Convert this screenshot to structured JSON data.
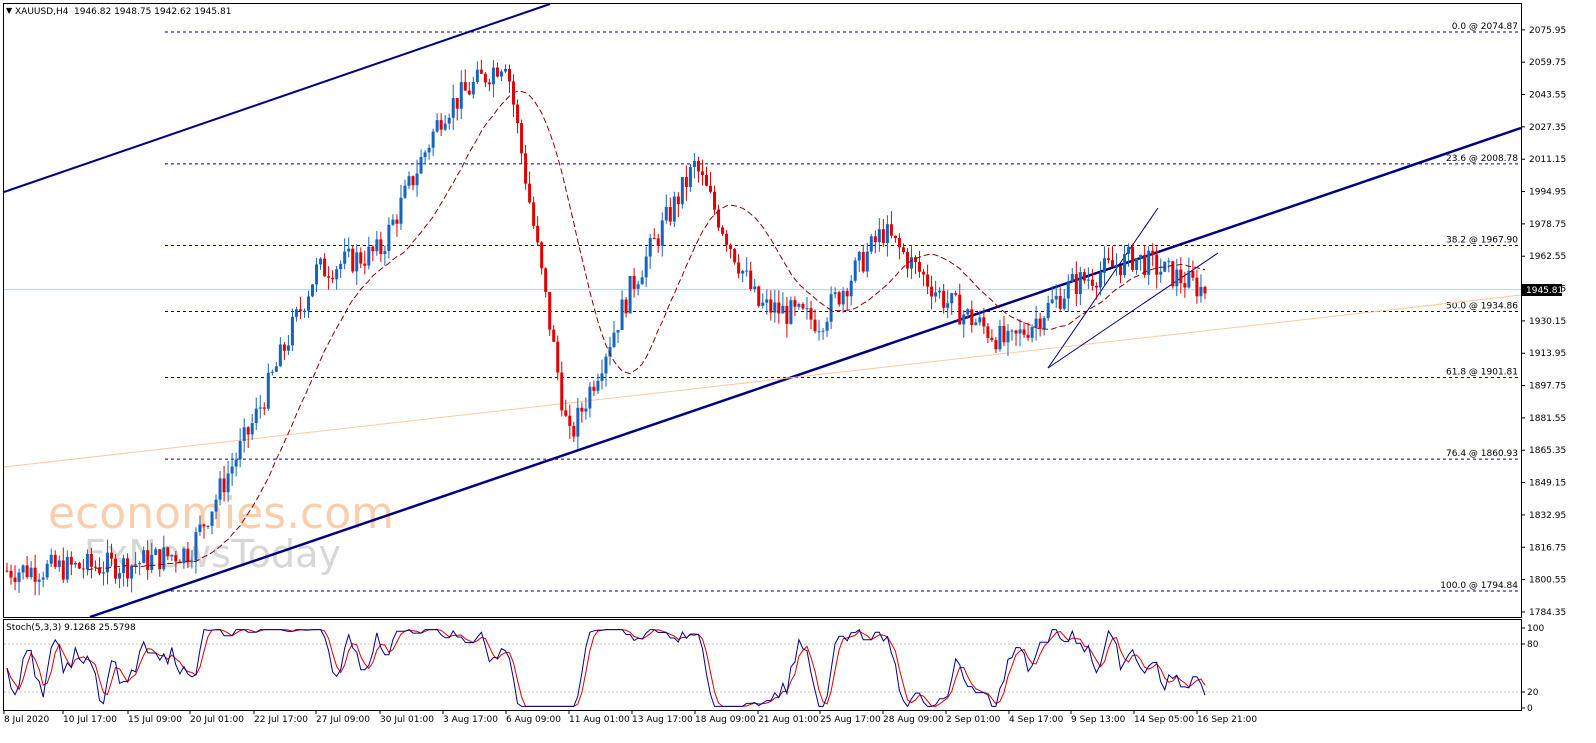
{
  "header": {
    "symbol": "XAUUSD,H4",
    "ohlc": "1946.82 1948.75 1942.62 1945.81"
  },
  "watermark": {
    "line1": "economies.com",
    "line2": "FxNewsToday"
  },
  "price_axis": [
    "2075.95",
    "2059.75",
    "2043.55",
    "2027.35",
    "2011.15",
    "1994.95",
    "1978.75",
    "1962.55",
    "1946.35",
    "1930.15",
    "1913.95",
    "1897.75",
    "1881.55",
    "1865.35",
    "1849.15",
    "1832.95",
    "1816.75",
    "1800.55",
    "1784.35"
  ],
  "current_price": "1945.81",
  "fib_levels": [
    {
      "label": "0.0 @ 2074.87",
      "price": 2074.87
    },
    {
      "label": "23.6 @ 2008.78",
      "price": 2008.78
    },
    {
      "label": "38.2 @ 1967.90",
      "price": 1967.9
    },
    {
      "label": "50.0 @ 1934.86",
      "price": 1934.86
    },
    {
      "label": "61.8 @ 1901.81",
      "price": 1901.81
    },
    {
      "label": "76.4 @ 1860.93",
      "price": 1860.93
    },
    {
      "label": "100.0 @ 1794.84",
      "price": 1794.84
    }
  ],
  "stoch": {
    "label": "Stoch(5,3,3) 9.1268 25.5798",
    "axis": [
      "100",
      "80",
      "20",
      "0"
    ]
  },
  "time_axis": [
    "8 Jul 2020",
    "10 Jul 17:00",
    "15 Jul 09:00",
    "20 Jul 01:00",
    "22 Jul 17:00",
    "27 Jul 09:00",
    "30 Jul 01:00",
    "3 Aug 17:00",
    "6 Aug 09:00",
    "11 Aug 01:00",
    "13 Aug 17:00",
    "18 Aug 09:00",
    "21 Aug 01:00",
    "25 Aug 17:00",
    "28 Aug 09:00",
    "2 Sep 01:00",
    "4 Sep 17:00",
    "9 Sep 13:00",
    "14 Sep 05:00",
    "16 Sep 21:00"
  ],
  "colors": {
    "up": "#1565c0",
    "down": "#e00000",
    "fib": "#000080",
    "trend": "#000080",
    "ma": "#8b0000",
    "stoch_main": "#00008b",
    "stoch_signal": "#e00000",
    "level_line": "#add8e6",
    "orange_line": "#ffc8a0",
    "price_tag": "#000000"
  },
  "chart_data": {
    "type": "candlestick",
    "title": "XAUUSD,H4",
    "ylim": [
      1784.35,
      2075.95
    ],
    "x_start": "8 Jul 2020",
    "x_end": "16 Sep 21:00",
    "waypoints": [
      {
        "time": "8 Jul 2020",
        "close": 1805
      },
      {
        "time": "15 Jul 09:00",
        "close": 1808
      },
      {
        "time": "20 Jul 01:00",
        "close": 1815
      },
      {
        "time": "22 Jul 17:00",
        "close": 1880
      },
      {
        "time": "27 Jul 09:00",
        "close": 1955
      },
      {
        "time": "30 Jul 01:00",
        "close": 1965
      },
      {
        "time": "3 Aug 17:00",
        "close": 2035
      },
      {
        "time": "6 Aug 09:00",
        "close": 2062
      },
      {
        "time": "11 Aug 01:00",
        "close": 1870
      },
      {
        "time": "13 Aug 17:00",
        "close": 1948
      },
      {
        "time": "18 Aug 09:00",
        "close": 2008
      },
      {
        "time": "21 Aug 01:00",
        "close": 1938
      },
      {
        "time": "25 Aug 17:00",
        "close": 1930
      },
      {
        "time": "28 Aug 09:00",
        "close": 1975
      },
      {
        "time": "2 Sep 01:00",
        "close": 1940
      },
      {
        "time": "4 Sep 17:00",
        "close": 1918
      },
      {
        "time": "9 Sep 13:00",
        "close": 1948
      },
      {
        "time": "14 Sep 05:00",
        "close": 1962
      },
      {
        "time": "16 Sep 21:00",
        "close": 1945.81
      }
    ]
  }
}
